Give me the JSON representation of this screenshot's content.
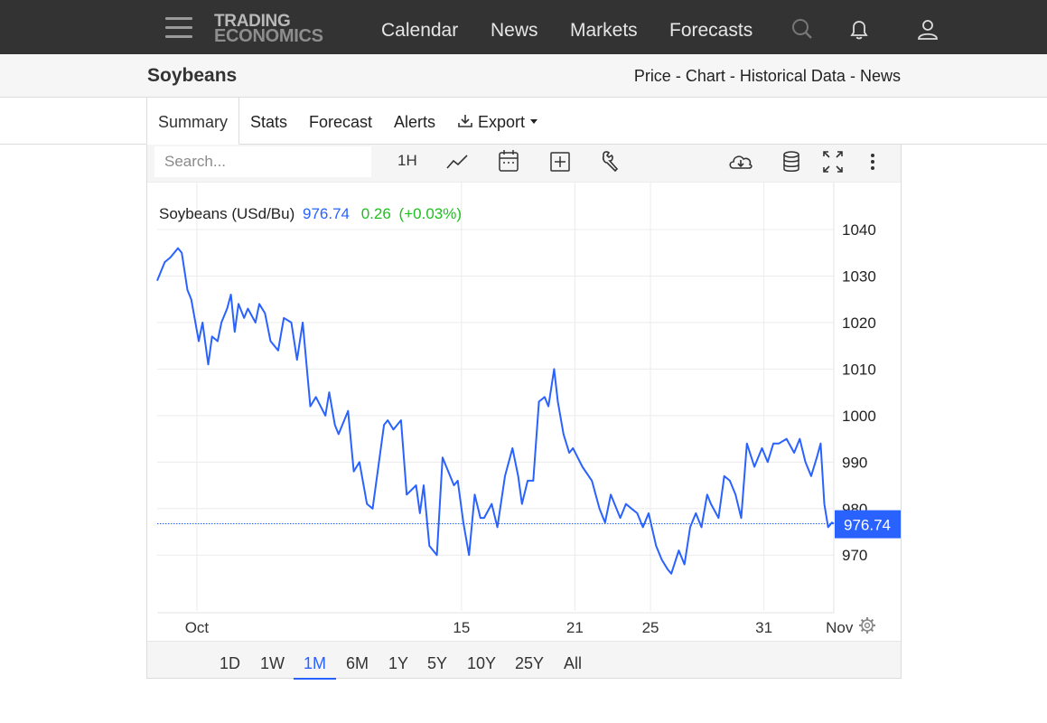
{
  "nav": {
    "logo_line1": "TRADING",
    "logo_line2": "ECONOMICS",
    "links": [
      "Calendar",
      "News",
      "Markets",
      "Forecasts"
    ],
    "icons": [
      "menu-icon",
      "search-icon",
      "bell-icon",
      "user-icon"
    ]
  },
  "header": {
    "title": "Soybeans",
    "breadcrumbs": [
      "Price",
      "Chart",
      "Historical Data",
      "News"
    ],
    "separator": "-"
  },
  "tabs": [
    "Summary",
    "Stats",
    "Forecast",
    "Alerts",
    "Export"
  ],
  "toolbar": {
    "search_placeholder": "Search...",
    "interval": "1H",
    "icons": [
      "line-chart-icon",
      "calendar-icon",
      "add-indicator-icon",
      "wrench-icon",
      "cloud-download-icon",
      "database-icon",
      "fullscreen-icon",
      "more-icon"
    ]
  },
  "legend": {
    "name": "Soybeans (USd/Bu)",
    "last": "976.74",
    "change": "0.26",
    "change_pct": "(+0.03%)"
  },
  "ranges": [
    "1D",
    "1W",
    "1M",
    "6M",
    "1Y",
    "5Y",
    "10Y",
    "25Y",
    "All"
  ],
  "active_range": "1M",
  "colors": {
    "line": "#2962ff",
    "positive": "#1fbf1f",
    "nav_bg": "#333333"
  },
  "chart_data": {
    "type": "line",
    "series_name": "Soybeans (USd/Bu)",
    "x_ticks": [
      {
        "label": "Oct",
        "day": 1
      },
      {
        "label": "15",
        "day": 15
      },
      {
        "label": "21",
        "day": 21
      },
      {
        "label": "25",
        "day": 25
      },
      {
        "label": "31",
        "day": 31
      },
      {
        "label": "Nov",
        "day": 35
      }
    ],
    "y_ticks": [
      970,
      980,
      990,
      1000,
      1010,
      1020,
      1030,
      1040
    ],
    "ylim": [
      958,
      1040
    ],
    "xlim": [
      -1.1,
      34.7
    ],
    "last_value": 976.74,
    "last_label": "976.74",
    "grid": true,
    "x": [
      -1.1,
      -0.9,
      -0.7,
      -0.4,
      -0.2,
      0.0,
      0.2,
      0.5,
      0.7,
      1.1,
      1.3,
      1.6,
      1.8,
      2.1,
      2.3,
      2.6,
      2.8,
      3.0,
      3.2,
      3.5,
      3.7,
      4.1,
      4.3,
      4.6,
      4.9,
      5.3,
      5.6,
      6.0,
      6.3,
      6.6,
      7.0,
      7.3,
      7.8,
      8.0,
      8.3,
      8.5,
      9.0,
      9.3,
      9.6,
      10.0,
      10.3,
      10.6,
      10.9,
      11.1,
      11.4,
      11.8,
      12.1,
      12.6,
      12.8,
      13.0,
      13.3,
      13.7,
      14.0,
      14.2,
      14.6,
      14.8,
      15.1,
      15.4,
      15.7,
      16.0,
      16.2,
      16.6,
      16.9,
      17.3,
      17.7,
      18.0,
      18.2,
      18.5,
      18.8,
      19.1,
      19.4,
      19.6,
      19.9,
      20.1,
      20.4,
      20.7,
      20.9,
      21.4,
      21.9,
      22.3,
      22.6,
      22.9,
      23.4,
      23.7,
      24.0,
      24.3,
      24.6,
      24.9,
      25.3,
      25.6,
      25.9,
      26.1,
      26.5,
      26.8,
      27.1,
      27.4,
      27.7,
      28.0,
      28.2,
      28.6,
      28.9,
      29.2,
      29.5,
      29.8,
      30.1,
      30.5,
      30.9,
      31.2,
      31.5,
      31.8,
      32.2,
      32.6,
      32.9,
      33.2,
      33.5,
      33.8,
      34.0,
      34.2,
      34.4,
      34.6,
      34.7
    ],
    "y": [
      1029,
      1031,
      1033,
      1034,
      1035,
      1036,
      1035,
      1027,
      1025,
      1016,
      1020,
      1011,
      1017,
      1016,
      1020,
      1023,
      1026,
      1018,
      1024,
      1021,
      1023,
      1020,
      1024,
      1022,
      1016,
      1014,
      1021,
      1020,
      1012,
      1020,
      1002,
      1004,
      1000,
      1005,
      998,
      996,
      1001,
      988,
      990,
      981,
      980,
      989,
      998,
      999,
      997,
      999,
      983,
      985,
      979,
      985,
      972,
      970,
      991,
      989,
      985,
      986,
      977,
      970,
      983,
      978,
      978,
      981,
      976,
      987,
      993,
      987,
      981,
      986,
      986,
      1003,
      1004,
      1002,
      1010,
      1003,
      996,
      992,
      993,
      989,
      986,
      980,
      977,
      983,
      978,
      981,
      980,
      979,
      976,
      979,
      972,
      969,
      967,
      966,
      971,
      968,
      976,
      979,
      976,
      983,
      981,
      978,
      987,
      986,
      983,
      978,
      994,
      989,
      993,
      990,
      994,
      994,
      995,
      992,
      995,
      990,
      987,
      991,
      994,
      981,
      976,
      977,
      976.74
    ],
    "samples": [
      {
        "x": -1.1,
        "y": 1029
      }
    ]
  }
}
